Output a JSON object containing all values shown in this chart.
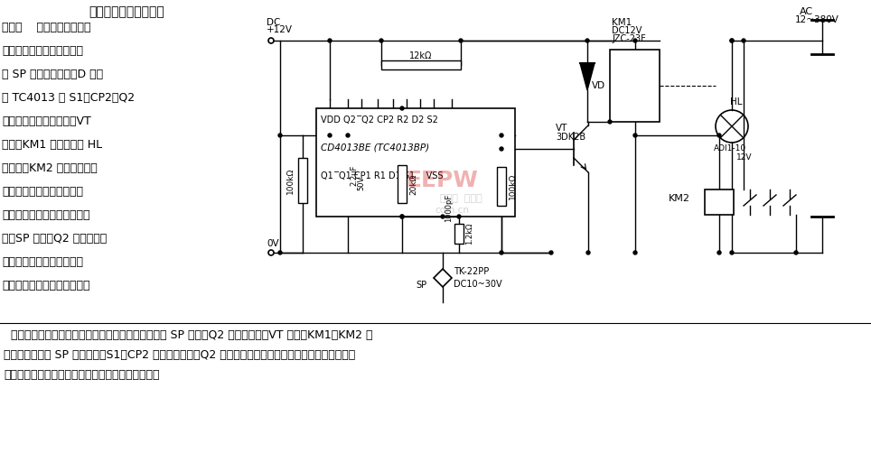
{
  "bg_color": "#ffffff",
  "title": "传动系统感应式行程开",
  "left_text_lines": [
    "关电路    当运动部位制子作",
    "用于直流电磁感应式接近并",
    "关 SP 时，使其闭合。D 触发",
    "器 TC4013 的 S1、CP2、Q2",
    "端由低电平变为高电平，VT",
    "导通，KM1 得电吸合使 HL",
    "灯熄灭，KM2 得电，其触点",
    "控制运动部位电机减速（未",
    "画出）。当制子移并接近开关",
    "时，SP 断开，Q2 状态不变，",
    "电机继续减速。当运动部位",
    "制子接近并作用于换向后退另"
  ],
  "bottom_text_lines": [
    "  一路的接近开关时，电机使运动部件后退，到再次使 SP 闭合，Q2 端变低电平，VT 截止，KM1、KM2 失",
    "电，制子移开后 SP 再次断开，S1、CP2 由高电平变低，Q2 保持低电平不变。等待下次行程控制。用几套",
    "这样的电路可控制机床、生产线、窑炉等生产环节。"
  ]
}
